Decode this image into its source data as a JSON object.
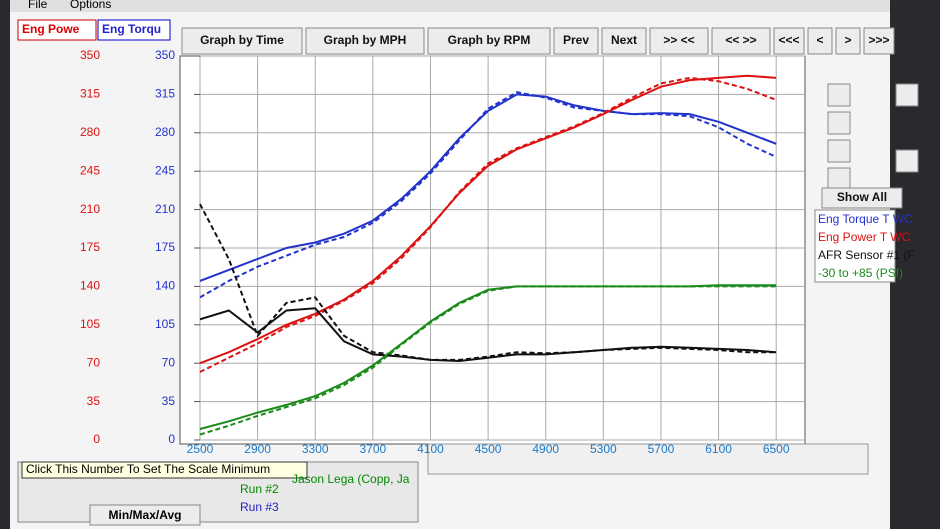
{
  "menu": [
    "File",
    "Options"
  ],
  "tabs": [
    "Eng Powe",
    "Eng Torqu"
  ],
  "buttons": [
    "Graph by Time",
    "Graph by MPH",
    "Graph by RPM",
    "Prev",
    "Next",
    ">> <<",
    "<< >>",
    "<<<",
    "<",
    ">",
    ">>>"
  ],
  "side_buttons": [
    "Show All"
  ],
  "status_tip": "Click This Number To Set The Scale Minimum",
  "runs": [
    {
      "label": "Run #2",
      "driver": "Jason Lega (Copp, Ja"
    },
    {
      "label": "Run #3"
    }
  ],
  "min_max": "Min/Max/Avg",
  "chart_data": {
    "type": "line",
    "x": [
      2500,
      2700,
      2900,
      3100,
      3300,
      3500,
      3700,
      3900,
      4100,
      4300,
      4500,
      4700,
      4900,
      5100,
      5300,
      5500,
      5700,
      5900,
      6100,
      6300,
      6500
    ],
    "xlim": [
      2500,
      6700
    ],
    "xticks": [
      2500,
      2900,
      3300,
      3700,
      4100,
      4500,
      4900,
      5300,
      5700,
      6100,
      6500
    ],
    "ylim": [
      0,
      350
    ],
    "yticks": [
      0,
      35,
      70,
      105,
      140,
      175,
      210,
      245,
      280,
      315,
      350
    ],
    "ytick_color": "#dd1111",
    "y2lim": [
      0,
      350
    ],
    "y2ticks": [
      0,
      35,
      70,
      105,
      140,
      175,
      210,
      245,
      280,
      315,
      350
    ],
    "y2tick_color": "#2233cc",
    "grid": true,
    "series": [
      {
        "name": "Eng Torque T WC",
        "color": "#2233cc",
        "axis": "y2",
        "values": [
          145,
          155,
          165,
          175,
          180,
          188,
          200,
          220,
          245,
          275,
          300,
          315,
          313,
          305,
          300,
          297,
          298,
          297,
          290,
          280,
          270
        ]
      },
      {
        "color": "#2233cc",
        "axis": "y2",
        "dashed": true,
        "values": [
          130,
          145,
          158,
          168,
          178,
          185,
          198,
          218,
          243,
          273,
          302,
          317,
          312,
          303,
          300,
          297,
          297,
          295,
          285,
          270,
          258
        ]
      },
      {
        "name": "Eng Power T WC",
        "color": "#dd1111",
        "values": [
          70,
          80,
          92,
          105,
          115,
          128,
          145,
          168,
          195,
          225,
          250,
          265,
          275,
          285,
          297,
          310,
          322,
          328,
          330,
          332,
          330
        ]
      },
      {
        "color": "#dd1111",
        "dashed": true,
        "values": [
          62,
          75,
          88,
          103,
          113,
          127,
          143,
          166,
          194,
          226,
          252,
          266,
          276,
          286,
          298,
          312,
          325,
          330,
          327,
          320,
          310
        ]
      },
      {
        "name": "AFR Sensor #1 (F",
        "color": "#111111",
        "values": [
          110,
          118,
          98,
          118,
          120,
          90,
          78,
          76,
          73,
          72,
          75,
          78,
          78,
          80,
          82,
          84,
          85,
          84,
          83,
          82,
          80
        ]
      },
      {
        "color": "#111111",
        "dashed": true,
        "values": [
          215,
          165,
          95,
          125,
          130,
          95,
          80,
          77,
          73,
          73,
          76,
          80,
          79,
          80,
          82,
          83,
          84,
          83,
          82,
          80,
          80
        ]
      },
      {
        "name": "-30 to +85 (PSI)",
        "color": "#1a8a1a",
        "values": [
          10,
          17,
          25,
          32,
          40,
          52,
          68,
          88,
          108,
          125,
          137,
          140,
          140,
          140,
          140,
          140,
          140,
          140,
          141,
          141,
          141
        ]
      },
      {
        "color": "#1a8a1a",
        "dashed": true,
        "values": [
          5,
          13,
          22,
          30,
          38,
          50,
          66,
          87,
          107,
          124,
          136,
          140,
          140,
          140,
          140,
          140,
          140,
          140,
          140,
          140,
          140
        ]
      }
    ]
  }
}
